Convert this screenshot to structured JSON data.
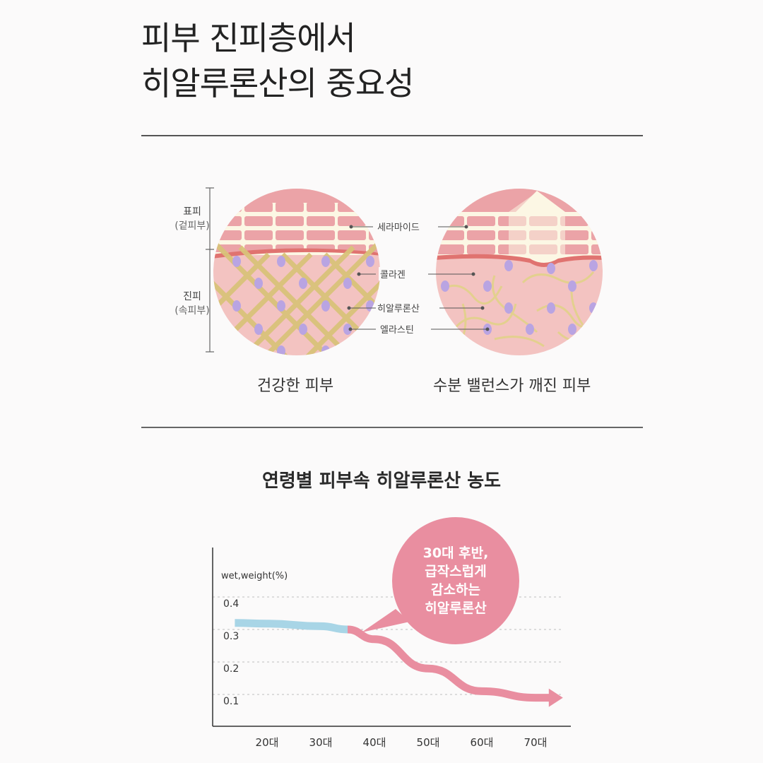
{
  "title": {
    "line1": "피부 진피층에서",
    "line2": "히알루론산의 중요성"
  },
  "diagram": {
    "epidermis": {
      "label": "표피",
      "sub": "(겉피부)"
    },
    "dermis": {
      "label": "진피",
      "sub": "(속피부)"
    },
    "callouts": [
      "세라마이드",
      "콜라겐",
      "히알루론산",
      "엘라스틴"
    ],
    "captions": {
      "healthy": "건강한 피부",
      "broken": "수분 밸런스가 깨진 피부"
    },
    "colors": {
      "ceramide": "#eba3a7",
      "cream": "#fcf7e4",
      "dermis": "#f3c3c1",
      "border": "#e07370",
      "collagen": "#d9c27a",
      "hyaluronic": "#b9a4e2"
    }
  },
  "chart_title": "연령별 피부속 히알루론산 농도",
  "chart_data": {
    "type": "line",
    "title": "연령별 피부속 히알루론산 농도",
    "ylabel": "wet,weight(%)",
    "xlabel": "",
    "categories": [
      "20대",
      "30대",
      "40대",
      "50대",
      "60대",
      "70대"
    ],
    "yticks": [
      "0.4",
      "0.3",
      "0.2",
      "0.1"
    ],
    "ylim": [
      0.05,
      0.45
    ],
    "grid": true,
    "series": [
      {
        "x": [
          14,
          20,
          30,
          35
        ],
        "y": [
          0.32,
          0.318,
          0.31,
          0.3
        ],
        "color": "#a8d5e6"
      },
      {
        "x": [
          35,
          40,
          50,
          60,
          70,
          73
        ],
        "y": [
          0.3,
          0.27,
          0.18,
          0.11,
          0.09,
          0.09
        ],
        "color": "#e98ea0"
      }
    ],
    "annotation": [
      "30대 후반,",
      "급작스럽게",
      "감소하는",
      "히알루론산"
    ],
    "annotation_color": "#e98ea0"
  }
}
